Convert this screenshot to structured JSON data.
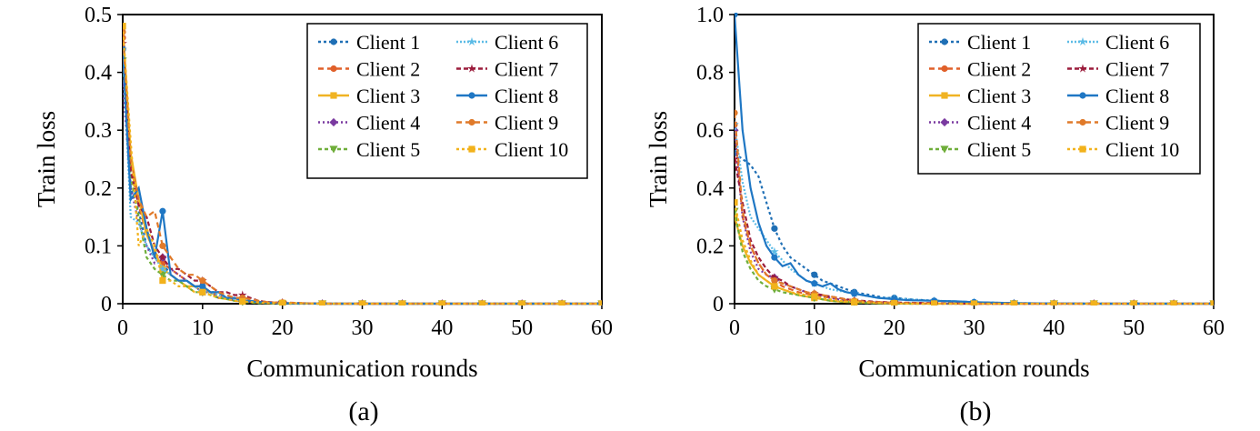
{
  "colors": {
    "Client 1": "#1f6fb5",
    "Client 2": "#e0602a",
    "Client 3": "#f0b323",
    "Client 4": "#7a3aa0",
    "Client 5": "#6fae3a",
    "Client 6": "#5bbbe6",
    "Client 7": "#9b1c3c",
    "Client 8": "#1f77c4",
    "Client 9": "#e07a2a",
    "Client 10": "#f2b21c"
  },
  "chart_data": [
    {
      "type": "line",
      "caption": "(a)",
      "xlabel": "Communication rounds",
      "ylabel": "Train loss",
      "xlim": [
        0,
        60
      ],
      "ylim": [
        0,
        0.5
      ],
      "xticks": [
        "0",
        "10",
        "20",
        "30",
        "40",
        "50",
        "60"
      ],
      "yticks": [
        "0",
        "0.1",
        "0.2",
        "0.3",
        "0.4",
        "0.5"
      ],
      "legend_position": "top-right",
      "x": [
        0,
        1,
        2,
        3,
        4,
        5,
        6,
        7,
        8,
        9,
        10,
        11,
        12,
        13,
        14,
        15,
        16,
        17,
        18,
        19,
        20,
        25,
        30,
        35,
        40,
        45,
        50,
        55,
        60
      ],
      "series": [
        {
          "name": "Client 1",
          "values": [
            0.44,
            0.2,
            0.16,
            0.1,
            0.08,
            0.07,
            0.05,
            0.04,
            0.04,
            0.03,
            0.03,
            0.02,
            0.02,
            0.01,
            0.01,
            0.01,
            0.005,
            0.003,
            0.002,
            0.001,
            0.001,
            0,
            0,
            0,
            0,
            0,
            0,
            0,
            0
          ]
        },
        {
          "name": "Client 2",
          "values": [
            0.46,
            0.24,
            0.17,
            0.12,
            0.09,
            0.07,
            0.06,
            0.05,
            0.04,
            0.03,
            0.03,
            0.02,
            0.015,
            0.01,
            0.008,
            0.005,
            0.004,
            0.003,
            0.002,
            0.001,
            0.001,
            0,
            0,
            0,
            0,
            0,
            0,
            0,
            0
          ]
        },
        {
          "name": "Client 3",
          "values": [
            0.48,
            0.26,
            0.18,
            0.12,
            0.09,
            0.06,
            0.05,
            0.04,
            0.03,
            0.03,
            0.02,
            0.02,
            0.01,
            0.01,
            0.005,
            0.004,
            0.003,
            0.002,
            0.001,
            0.001,
            0.001,
            0,
            0,
            0,
            0,
            0,
            0,
            0,
            0
          ]
        },
        {
          "name": "Client 4",
          "values": [
            0.38,
            0.2,
            0.14,
            0.1,
            0.07,
            0.08,
            0.06,
            0.05,
            0.04,
            0.03,
            0.02,
            0.02,
            0.01,
            0.01,
            0.005,
            0.004,
            0.003,
            0.002,
            0.001,
            0.001,
            0,
            0,
            0,
            0,
            0,
            0,
            0,
            0,
            0
          ]
        },
        {
          "name": "Client 5",
          "values": [
            0.42,
            0.22,
            0.15,
            0.08,
            0.06,
            0.05,
            0.04,
            0.04,
            0.03,
            0.02,
            0.02,
            0.015,
            0.01,
            0.008,
            0.005,
            0.003,
            0.002,
            0.001,
            0.001,
            0,
            0,
            0,
            0,
            0,
            0,
            0,
            0,
            0,
            0
          ]
        },
        {
          "name": "Client 6",
          "values": [
            0.44,
            0.15,
            0.14,
            0.1,
            0.08,
            0.06,
            0.05,
            0.04,
            0.04,
            0.03,
            0.02,
            0.02,
            0.015,
            0.01,
            0.008,
            0.006,
            0.004,
            0.003,
            0.002,
            0.001,
            0.001,
            0,
            0,
            0,
            0,
            0,
            0,
            0,
            0
          ]
        },
        {
          "name": "Client 7",
          "values": [
            0.45,
            0.23,
            0.17,
            0.15,
            0.1,
            0.08,
            0.06,
            0.06,
            0.05,
            0.04,
            0.04,
            0.03,
            0.02,
            0.02,
            0.015,
            0.015,
            0.01,
            0.005,
            0.003,
            0.002,
            0.002,
            0,
            0,
            0,
            0,
            0,
            0,
            0,
            0
          ]
        },
        {
          "name": "Client 8",
          "values": [
            0.44,
            0.18,
            0.2,
            0.13,
            0.08,
            0.16,
            0.05,
            0.04,
            0.04,
            0.03,
            0.03,
            0.02,
            0.02,
            0.01,
            0.01,
            0.005,
            0.005,
            0.003,
            0.002,
            0.001,
            0.001,
            0,
            0,
            0,
            0,
            0,
            0,
            0,
            0
          ]
        },
        {
          "name": "Client 9",
          "values": [
            0.47,
            0.25,
            0.18,
            0.15,
            0.16,
            0.1,
            0.08,
            0.06,
            0.05,
            0.05,
            0.04,
            0.03,
            0.02,
            0.015,
            0.01,
            0.01,
            0.008,
            0.005,
            0.003,
            0.002,
            0.002,
            0,
            0,
            0,
            0,
            0,
            0,
            0,
            0
          ]
        },
        {
          "name": "Client 10",
          "values": [
            0.48,
            0.28,
            0.1,
            0.13,
            0.1,
            0.04,
            0.04,
            0.03,
            0.03,
            0.02,
            0.02,
            0.015,
            0.01,
            0.008,
            0.005,
            0.004,
            0.003,
            0.002,
            0.001,
            0.001,
            0.001,
            0,
            0,
            0,
            0,
            0,
            0,
            0,
            0
          ]
        }
      ]
    },
    {
      "type": "line",
      "caption": "(b)",
      "xlabel": "Communication rounds",
      "ylabel": "Train loss",
      "xlim": [
        0,
        60
      ],
      "ylim": [
        0,
        1.0
      ],
      "xticks": [
        "0",
        "10",
        "20",
        "30",
        "40",
        "50",
        "60"
      ],
      "yticks": [
        "0",
        "0.2",
        "0.4",
        "0.6",
        "0.8",
        "1.0"
      ],
      "legend_position": "top-right",
      "x": [
        0,
        1,
        2,
        3,
        4,
        5,
        6,
        7,
        8,
        9,
        10,
        11,
        12,
        13,
        14,
        15,
        16,
        17,
        18,
        19,
        20,
        22,
        25,
        28,
        30,
        35,
        40,
        45,
        50,
        55,
        60
      ],
      "series": [
        {
          "name": "Client 1",
          "values": [
            0.52,
            0.5,
            0.48,
            0.44,
            0.35,
            0.26,
            0.2,
            0.16,
            0.14,
            0.12,
            0.1,
            0.08,
            0.07,
            0.06,
            0.05,
            0.04,
            0.035,
            0.03,
            0.025,
            0.02,
            0.02,
            0.015,
            0.01,
            0.008,
            0.005,
            0.002,
            0.001,
            0,
            0,
            0,
            0
          ]
        },
        {
          "name": "Client 2",
          "values": [
            0.62,
            0.3,
            0.2,
            0.14,
            0.1,
            0.08,
            0.06,
            0.05,
            0.04,
            0.035,
            0.03,
            0.025,
            0.02,
            0.015,
            0.012,
            0.01,
            0.008,
            0.006,
            0.005,
            0.004,
            0.003,
            0.002,
            0.001,
            0,
            0,
            0,
            0,
            0,
            0,
            0,
            0
          ]
        },
        {
          "name": "Client 3",
          "values": [
            0.3,
            0.2,
            0.14,
            0.1,
            0.08,
            0.06,
            0.05,
            0.04,
            0.03,
            0.025,
            0.02,
            0.015,
            0.01,
            0.008,
            0.006,
            0.005,
            0.004,
            0.003,
            0.002,
            0.001,
            0.001,
            0,
            0,
            0,
            0,
            0,
            0,
            0,
            0,
            0,
            0
          ]
        },
        {
          "name": "Client 4",
          "values": [
            0.6,
            0.3,
            0.18,
            0.12,
            0.1,
            0.09,
            0.07,
            0.06,
            0.05,
            0.04,
            0.03,
            0.025,
            0.02,
            0.015,
            0.01,
            0.008,
            0.006,
            0.005,
            0.004,
            0.003,
            0.002,
            0.001,
            0,
            0,
            0,
            0,
            0,
            0,
            0,
            0,
            0
          ]
        },
        {
          "name": "Client 5",
          "values": [
            0.32,
            0.18,
            0.12,
            0.08,
            0.06,
            0.05,
            0.04,
            0.035,
            0.03,
            0.025,
            0.02,
            0.015,
            0.01,
            0.008,
            0.006,
            0.004,
            0.003,
            0.002,
            0.001,
            0.001,
            0,
            0,
            0,
            0,
            0,
            0,
            0,
            0,
            0,
            0,
            0
          ]
        },
        {
          "name": "Client 6",
          "values": [
            0.62,
            0.42,
            0.3,
            0.26,
            0.22,
            0.18,
            0.15,
            0.12,
            0.1,
            0.08,
            0.07,
            0.06,
            0.05,
            0.045,
            0.04,
            0.035,
            0.03,
            0.025,
            0.02,
            0.02,
            0.018,
            0.015,
            0.01,
            0.008,
            0.005,
            0.002,
            0.001,
            0,
            0,
            0,
            0
          ]
        },
        {
          "name": "Client 7",
          "values": [
            0.5,
            0.35,
            0.22,
            0.16,
            0.12,
            0.09,
            0.08,
            0.06,
            0.05,
            0.04,
            0.035,
            0.03,
            0.025,
            0.02,
            0.015,
            0.012,
            0.01,
            0.008,
            0.006,
            0.005,
            0.004,
            0.003,
            0.002,
            0.001,
            0,
            0,
            0,
            0,
            0,
            0,
            0
          ]
        },
        {
          "name": "Client 8",
          "values": [
            1.0,
            0.6,
            0.4,
            0.28,
            0.2,
            0.16,
            0.13,
            0.14,
            0.1,
            0.08,
            0.07,
            0.06,
            0.07,
            0.05,
            0.04,
            0.035,
            0.03,
            0.025,
            0.02,
            0.018,
            0.015,
            0.012,
            0.01,
            0.008,
            0.005,
            0.002,
            0.001,
            0,
            0,
            0,
            0
          ]
        },
        {
          "name": "Client 9",
          "values": [
            0.66,
            0.32,
            0.2,
            0.14,
            0.1,
            0.08,
            0.07,
            0.06,
            0.05,
            0.04,
            0.035,
            0.03,
            0.025,
            0.02,
            0.015,
            0.01,
            0.008,
            0.006,
            0.005,
            0.004,
            0.003,
            0.002,
            0.001,
            0,
            0,
            0,
            0,
            0,
            0,
            0,
            0
          ]
        },
        {
          "name": "Client 10",
          "values": [
            0.35,
            0.22,
            0.15,
            0.1,
            0.08,
            0.06,
            0.05,
            0.04,
            0.035,
            0.03,
            0.025,
            0.02,
            0.015,
            0.01,
            0.008,
            0.006,
            0.005,
            0.004,
            0.003,
            0.002,
            0.001,
            0,
            0,
            0,
            0,
            0,
            0,
            0,
            0,
            0,
            0
          ]
        }
      ]
    }
  ]
}
